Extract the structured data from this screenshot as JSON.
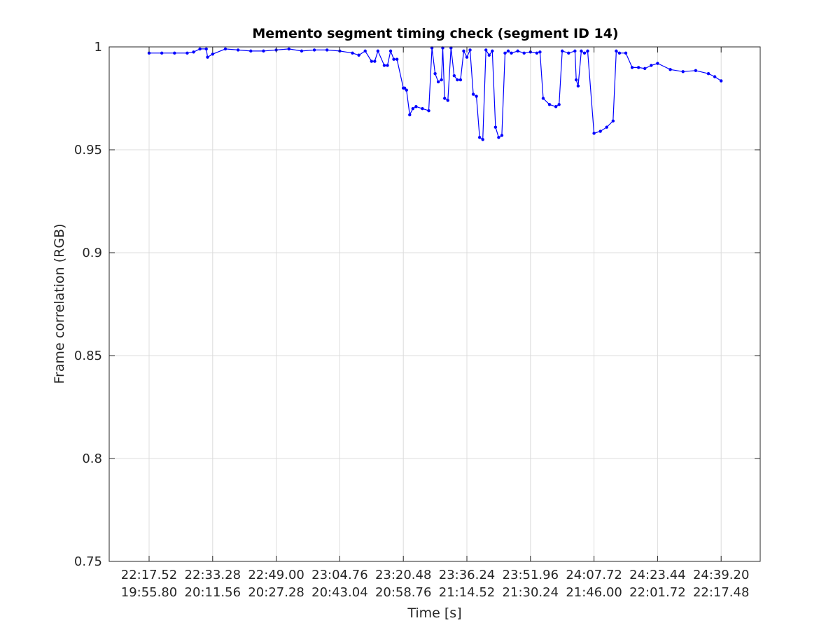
{
  "chart_data": {
    "type": "line",
    "title": "Memento segment timing check (segment ID 14)",
    "xlabel": "Time [s]",
    "ylabel": "Frame correlation (RGB)",
    "ylim": [
      0.75,
      1.0
    ],
    "xlim": [
      0,
      10
    ],
    "yticks": [
      0.75,
      0.8,
      0.85,
      0.9,
      0.95,
      1
    ],
    "ytick_labels": [
      "0.75",
      "0.8",
      "0.85",
      "0.9",
      "0.95",
      "1"
    ],
    "xticks": [
      {
        "x": 0,
        "line1": "22:17.52",
        "line2": "19:55.80"
      },
      {
        "x": 1,
        "line1": "22:33.28",
        "line2": "20:11.56"
      },
      {
        "x": 2,
        "line1": "22:49.00",
        "line2": "20:27.28"
      },
      {
        "x": 3,
        "line1": "23:04.76",
        "line2": "20:43.04"
      },
      {
        "x": 4,
        "line1": "23:20.48",
        "line2": "20:58.76"
      },
      {
        "x": 5,
        "line1": "23:36.24",
        "line2": "21:14.52"
      },
      {
        "x": 6,
        "line1": "23:51.96",
        "line2": "21:30.24"
      },
      {
        "x": 7,
        "line1": "24:07.72",
        "line2": "21:46.00"
      },
      {
        "x": 8,
        "line1": "24:23.44",
        "line2": "22:01.72"
      },
      {
        "x": 9,
        "line1": "24:39.20",
        "line2": "22:17.48"
      }
    ],
    "grid": true,
    "series": [
      {
        "color": "#0000ff",
        "x": [
          0.0,
          0.2,
          0.4,
          0.6,
          0.7,
          0.8,
          0.9,
          0.92,
          1.0,
          1.2,
          1.4,
          1.6,
          1.8,
          2.0,
          2.2,
          2.4,
          2.6,
          2.8,
          3.0,
          3.2,
          3.3,
          3.4,
          3.5,
          3.55,
          3.6,
          3.7,
          3.75,
          3.8,
          3.85,
          3.9,
          4.0,
          4.02,
          4.05,
          4.1,
          4.15,
          4.2,
          4.3,
          4.4,
          4.45,
          4.5,
          4.55,
          4.6,
          4.62,
          4.65,
          4.7,
          4.75,
          4.8,
          4.85,
          4.9,
          4.95,
          5.0,
          5.05,
          5.1,
          5.15,
          5.2,
          5.25,
          5.3,
          5.35,
          5.4,
          5.45,
          5.5,
          5.55,
          5.6,
          5.65,
          5.7,
          5.8,
          5.9,
          6.0,
          6.1,
          6.15,
          6.2,
          6.3,
          6.4,
          6.45,
          6.5,
          6.6,
          6.7,
          6.72,
          6.75,
          6.8,
          6.85,
          6.9,
          7.0,
          7.1,
          7.2,
          7.3,
          7.35,
          7.4,
          7.5,
          7.6,
          7.7,
          7.8,
          7.9,
          8.0,
          8.2,
          8.4,
          8.6,
          8.8,
          8.9,
          9.0
        ],
        "y": [
          0.997,
          0.997,
          0.997,
          0.997,
          0.9975,
          0.999,
          0.999,
          0.995,
          0.9965,
          0.999,
          0.9985,
          0.998,
          0.998,
          0.9985,
          0.999,
          0.998,
          0.9985,
          0.9985,
          0.998,
          0.997,
          0.996,
          0.998,
          0.993,
          0.993,
          0.998,
          0.991,
          0.991,
          0.998,
          0.994,
          0.994,
          0.98,
          0.98,
          0.979,
          0.967,
          0.97,
          0.971,
          0.97,
          0.969,
          0.9995,
          0.987,
          0.983,
          0.984,
          0.9995,
          0.975,
          0.974,
          0.9995,
          0.986,
          0.984,
          0.984,
          0.998,
          0.995,
          0.9985,
          0.977,
          0.976,
          0.956,
          0.955,
          0.9985,
          0.996,
          0.998,
          0.961,
          0.956,
          0.957,
          0.997,
          0.998,
          0.997,
          0.998,
          0.997,
          0.9975,
          0.997,
          0.9975,
          0.975,
          0.972,
          0.971,
          0.972,
          0.998,
          0.997,
          0.998,
          0.984,
          0.981,
          0.998,
          0.997,
          0.998,
          0.958,
          0.959,
          0.961,
          0.964,
          0.998,
          0.997,
          0.997,
          0.99,
          0.99,
          0.9895,
          0.991,
          0.992,
          0.989,
          0.988,
          0.9885,
          0.987,
          0.9855,
          0.9835
        ]
      }
    ]
  }
}
